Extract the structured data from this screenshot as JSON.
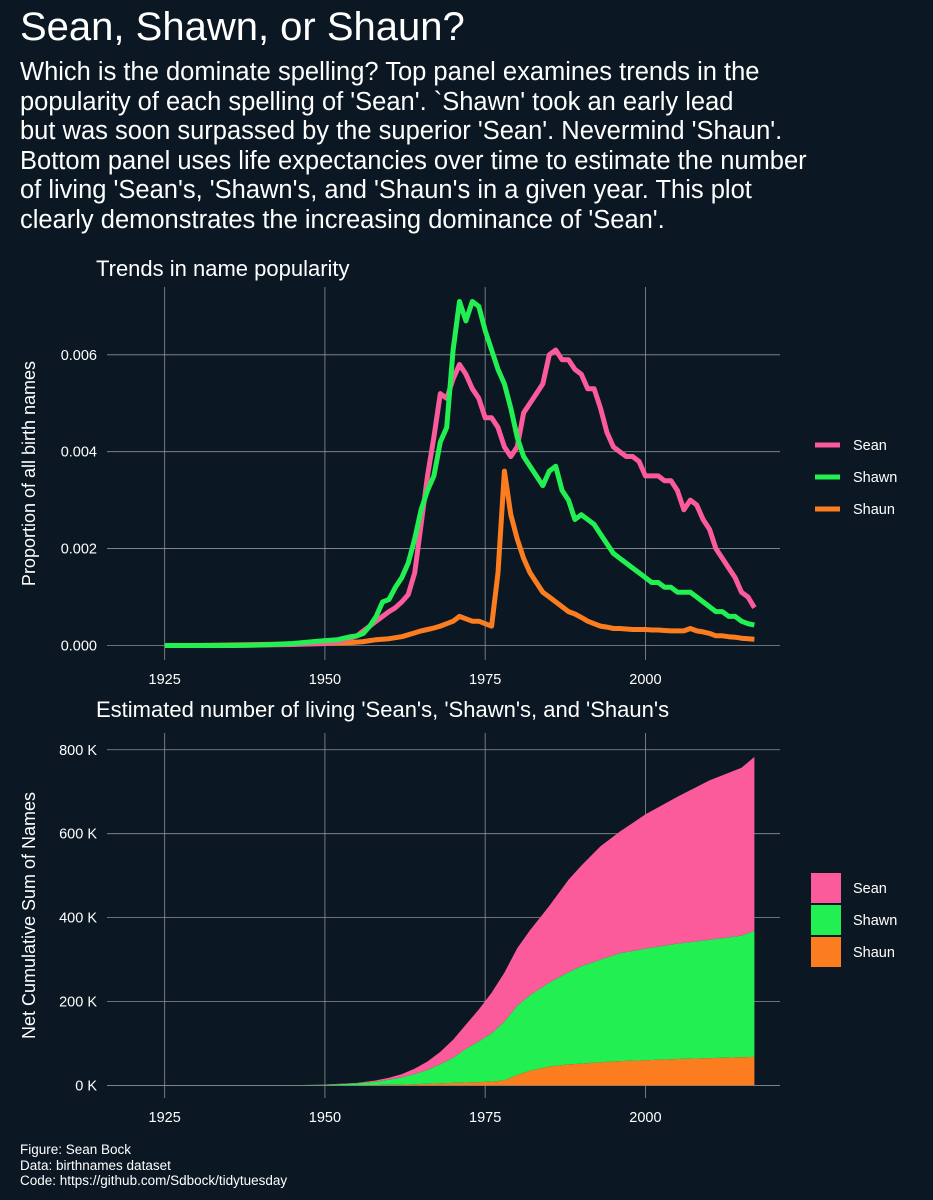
{
  "title": "Sean, Shawn, or Shaun?",
  "subtitle_lines": [
    "Which is the dominate spelling? Top panel examines trends in the",
    "popularity of each spelling of 'Sean'. `Shawn' took an early lead",
    "but was soon surpassed by the superior 'Sean'. Nevermind 'Shaun'.",
    "Bottom panel uses life expectancies over time to estimate the number",
    "of living 'Sean's, 'Shawn's, and 'Shaun's in a given year. This plot",
    "clearly demonstrates the increasing dominance of 'Sean'."
  ],
  "caption_lines": [
    "Figure: Sean Bock",
    "Data: birthnames dataset",
    "Code: https://github.com/Sdbock/tidytuesday"
  ],
  "colors": {
    "background": "#0b1722",
    "grid": "#8a9299",
    "Sean": "#fb5b9b",
    "Shawn": "#22ef52",
    "Shaun": "#fb7d1f"
  },
  "chart_data": [
    {
      "type": "line",
      "title": "Trends in name popularity",
      "xlabel": "",
      "ylabel": "Proportion of all birth names",
      "xlim": [
        1916,
        2021
      ],
      "ylim": [
        -0.0003,
        0.0074
      ],
      "xticks": [
        1925,
        1950,
        1975,
        2000
      ],
      "yticks": [
        0,
        0.002,
        0.004,
        0.006
      ],
      "ytick_labels": [
        "0.000",
        "0.002",
        "0.004",
        "0.006"
      ],
      "grid": true,
      "legend_position": "right",
      "x": [
        1925,
        1930,
        1935,
        1940,
        1945,
        1950,
        1952,
        1954,
        1955,
        1956,
        1957,
        1958,
        1959,
        1960,
        1961,
        1962,
        1963,
        1964,
        1965,
        1966,
        1967,
        1968,
        1969,
        1970,
        1971,
        1972,
        1973,
        1974,
        1975,
        1976,
        1977,
        1978,
        1979,
        1980,
        1981,
        1982,
        1983,
        1984,
        1985,
        1986,
        1987,
        1988,
        1989,
        1990,
        1991,
        1992,
        1993,
        1994,
        1995,
        1996,
        1997,
        1998,
        1999,
        2000,
        2001,
        2002,
        2003,
        2004,
        2005,
        2006,
        2007,
        2008,
        2009,
        2010,
        2011,
        2012,
        2013,
        2014,
        2015,
        2016,
        2017
      ],
      "series": [
        {
          "name": "Sean",
          "values": [
            0,
            0,
            0,
            1e-05,
            2e-05,
            4e-05,
            8e-05,
            0.00015,
            0.0002,
            0.0003,
            0.0004,
            0.0005,
            0.0006,
            0.0007,
            0.00078,
            0.0009,
            0.00105,
            0.0015,
            0.0025,
            0.0035,
            0.0043,
            0.0052,
            0.0051,
            0.0055,
            0.0058,
            0.0056,
            0.0053,
            0.0051,
            0.0047,
            0.0047,
            0.0045,
            0.0041,
            0.0039,
            0.0041,
            0.0048,
            0.005,
            0.0052,
            0.0054,
            0.006,
            0.0061,
            0.0059,
            0.0059,
            0.0057,
            0.0056,
            0.0053,
            0.0053,
            0.0049,
            0.0044,
            0.0041,
            0.004,
            0.0039,
            0.0039,
            0.0038,
            0.0035,
            0.0035,
            0.0035,
            0.0034,
            0.0034,
            0.0032,
            0.0028,
            0.003,
            0.0029,
            0.0026,
            0.0024,
            0.002,
            0.0018,
            0.0016,
            0.0014,
            0.0011,
            0.001,
            0.00078
          ]
        },
        {
          "name": "Shawn",
          "values": [
            0,
            0,
            0,
            1e-05,
            4e-05,
            0.0001,
            0.00012,
            0.00018,
            0.0002,
            0.00025,
            0.0004,
            0.0006,
            0.0009,
            0.00095,
            0.0012,
            0.0014,
            0.0017,
            0.0022,
            0.0028,
            0.0032,
            0.0035,
            0.0042,
            0.0045,
            0.0061,
            0.0071,
            0.0067,
            0.0071,
            0.007,
            0.0065,
            0.0061,
            0.0057,
            0.0054,
            0.0049,
            0.0043,
            0.0039,
            0.0037,
            0.0035,
            0.0033,
            0.0036,
            0.0037,
            0.0032,
            0.003,
            0.0026,
            0.0027,
            0.0026,
            0.0025,
            0.0023,
            0.0021,
            0.0019,
            0.0018,
            0.0017,
            0.0016,
            0.0015,
            0.0014,
            0.0013,
            0.0013,
            0.0012,
            0.0012,
            0.0011,
            0.0011,
            0.0011,
            0.001,
            0.0009,
            0.0008,
            0.0007,
            0.0007,
            0.0006,
            0.0006,
            0.0005,
            0.00045,
            0.00042
          ]
        },
        {
          "name": "Shaun",
          "values": [
            0,
            0,
            1e-05,
            2e-05,
            3e-05,
            4e-05,
            5e-05,
            6e-05,
            7e-05,
            8e-05,
            0.0001,
            0.00012,
            0.00013,
            0.00014,
            0.00016,
            0.00018,
            0.00022,
            0.00026,
            0.0003,
            0.00033,
            0.00036,
            0.0004,
            0.00045,
            0.0005,
            0.0006,
            0.00055,
            0.0005,
            0.0005,
            0.00045,
            0.0004,
            0.0015,
            0.0036,
            0.0027,
            0.0022,
            0.0018,
            0.0015,
            0.0013,
            0.0011,
            0.001,
            0.0009,
            0.0008,
            0.0007,
            0.00065,
            0.00058,
            0.0005,
            0.00045,
            0.0004,
            0.00038,
            0.00035,
            0.00035,
            0.00034,
            0.00033,
            0.00033,
            0.00033,
            0.00032,
            0.00032,
            0.00031,
            0.0003,
            0.0003,
            0.0003,
            0.00035,
            0.0003,
            0.00028,
            0.00025,
            0.0002,
            0.0002,
            0.00018,
            0.00017,
            0.00015,
            0.00014,
            0.00013
          ]
        }
      ]
    },
    {
      "type": "area",
      "stacked": true,
      "title": "Estimated number of living 'Sean's, 'Shawn's, and 'Shaun's",
      "xlabel": "",
      "ylabel": "Net Cumulative Sum of Names",
      "xlim": [
        1916,
        2021
      ],
      "ylim": [
        -30000,
        840000
      ],
      "xticks": [
        1925,
        1950,
        1975,
        2000
      ],
      "yticks": [
        0,
        200000,
        400000,
        600000,
        800000
      ],
      "ytick_labels": [
        "0 K",
        "200 K",
        "400 K",
        "600 K",
        "800 K"
      ],
      "grid": true,
      "legend_position": "right",
      "x": [
        1925,
        1935,
        1945,
        1950,
        1955,
        1958,
        1960,
        1962,
        1964,
        1966,
        1968,
        1970,
        1972,
        1974,
        1976,
        1978,
        1980,
        1982,
        1985,
        1988,
        1990,
        1993,
        1996,
        2000,
        2005,
        2010,
        2015,
        2017
      ],
      "series": [
        {
          "name": "Shaun",
          "values": [
            0,
            0,
            100,
            300,
            600,
            1000,
            1500,
            2000,
            3000,
            4000,
            5000,
            6000,
            7000,
            8000,
            9000,
            12000,
            25000,
            35000,
            45000,
            50000,
            52000,
            55000,
            58000,
            60000,
            63000,
            65000,
            67000,
            68000
          ]
        },
        {
          "name": "Shawn",
          "values": [
            0,
            0,
            300,
            1500,
            4500,
            8000,
            12000,
            17000,
            24000,
            33000,
            45000,
            60000,
            80000,
            97000,
            115000,
            140000,
            165000,
            180000,
            200000,
            220000,
            232000,
            245000,
            257000,
            266000,
            275000,
            282000,
            290000,
            300000
          ]
        },
        {
          "name": "Sean",
          "values": [
            0,
            0,
            100,
            300,
            1000,
            3000,
            5000,
            8000,
            13000,
            20000,
            30000,
            43000,
            58000,
            76000,
            97000,
            117000,
            137000,
            155000,
            183000,
            220000,
            240000,
            270000,
            290000,
            320000,
            350000,
            380000,
            400000,
            415000
          ]
        }
      ]
    }
  ]
}
